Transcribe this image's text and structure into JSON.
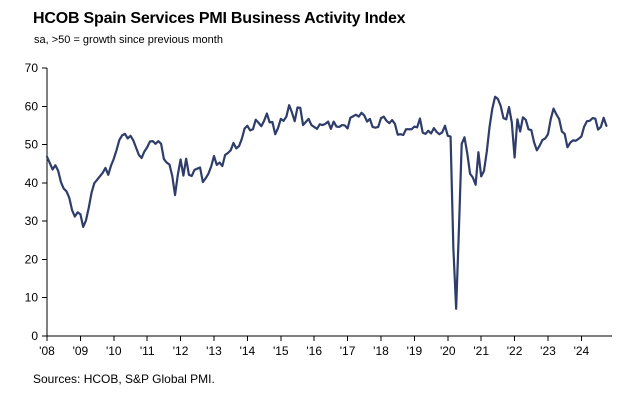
{
  "chart_data": {
    "type": "line",
    "title": "HCOB Spain Services PMI Business Activity Index",
    "subtitle": "sa, >50 = growth since previous month",
    "source": "Sources: HCOB, S&P Global PMI.",
    "xlabel": "",
    "ylabel": "",
    "ylim": [
      0,
      70
    ],
    "yticks": [
      0,
      10,
      20,
      30,
      40,
      50,
      60,
      70
    ],
    "x_tick_labels": [
      "'08",
      "'09",
      "'10",
      "'11",
      "'12",
      "'13",
      "'14",
      "'15",
      "'16",
      "'17",
      "'18",
      "'19",
      "'20",
      "'21",
      "'22",
      "'23",
      "'24"
    ],
    "x_start": "2008-01",
    "x_end": "2024-10",
    "frequency": "monthly",
    "grid": false,
    "legend": false,
    "line_color": "#2e3d69",
    "axis_color": "#000000",
    "series": [
      {
        "name": "Spain Services PMI Business Activity Index",
        "values": [
          46.8,
          45.2,
          43.5,
          44.6,
          43.2,
          40.2,
          38.5,
          37.8,
          36.1,
          32.9,
          31.2,
          32.3,
          31.8,
          28.5,
          30.2,
          33.5,
          37.4,
          39.9,
          40.8,
          41.7,
          42.6,
          43.9,
          42.1,
          44.5,
          46.3,
          48.6,
          51.2,
          52.4,
          52.8,
          51.6,
          52.3,
          51.1,
          49.2,
          47.3,
          46.5,
          48.2,
          49.3,
          50.8,
          50.9,
          50.2,
          50.9,
          50.2,
          46.2,
          45.3,
          44.8,
          41.8,
          36.8,
          42.1,
          46.1,
          41.9,
          46.3,
          42.1,
          41.8,
          43.4,
          43.7,
          44.0,
          40.2,
          41.2,
          42.4,
          44.3,
          47.0,
          44.7,
          45.3,
          44.4,
          47.3,
          47.8,
          48.5,
          50.4,
          49.0,
          49.6,
          51.5,
          54.2,
          54.9,
          53.7,
          54.0,
          56.5,
          55.7,
          54.8,
          56.2,
          58.1,
          55.8,
          55.9,
          52.7,
          54.3,
          56.7,
          56.2,
          57.3,
          60.3,
          58.4,
          56.1,
          59.7,
          59.6,
          55.1,
          55.9,
          56.7,
          55.1,
          54.6,
          54.1,
          55.3,
          55.1,
          55.4,
          56.0,
          54.1,
          56.0,
          54.7,
          54.6,
          55.1,
          55.0,
          54.2,
          57.0,
          57.4,
          57.8,
          57.3,
          58.3,
          57.6,
          56.0,
          56.7,
          54.6,
          54.4,
          54.6,
          56.9,
          57.3,
          56.2,
          55.6,
          56.4,
          55.4,
          52.6,
          52.7,
          52.5,
          54.0,
          54.0,
          54.0,
          54.7,
          54.5,
          56.8,
          53.1,
          52.8,
          53.6,
          52.9,
          54.3,
          53.3,
          52.7,
          53.2,
          54.9,
          52.3,
          52.1,
          23.0,
          7.1,
          27.9,
          50.2,
          51.9,
          47.7,
          42.4,
          41.4,
          39.5,
          48.0,
          41.7,
          43.1,
          48.1,
          54.6,
          59.4,
          62.5,
          61.9,
          60.1,
          56.9,
          56.6,
          59.8,
          55.8,
          46.6,
          56.6,
          53.4,
          57.1,
          56.5,
          54.0,
          53.8,
          50.6,
          48.5,
          49.7,
          51.2,
          51.6,
          52.7,
          56.7,
          59.4,
          57.9,
          56.7,
          53.4,
          52.8,
          49.3,
          50.5,
          51.1,
          51.0,
          51.5,
          52.1,
          54.7,
          56.1,
          56.2,
          56.9,
          56.8,
          53.9,
          54.6,
          57.0,
          54.9
        ]
      }
    ]
  }
}
